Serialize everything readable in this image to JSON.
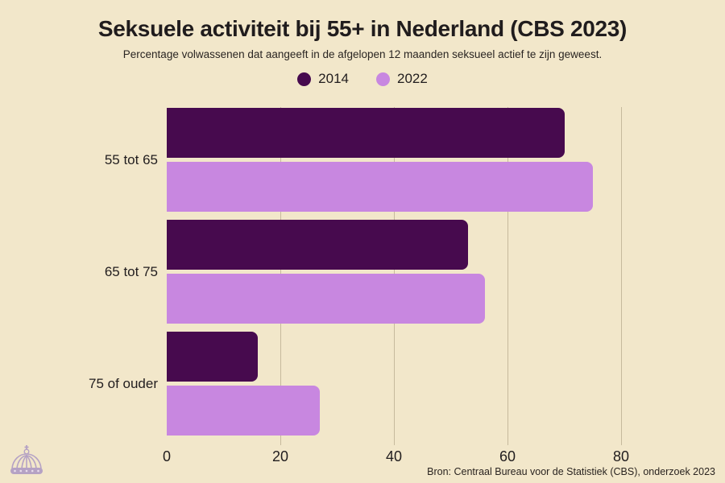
{
  "header": {
    "title": "Seksuele activiteit bij 55+ in Nederland (CBS 2023)",
    "subtitle": "Percentage volwassenen dat aangeeft in de afgelopen 12 maanden seksueel actief te zijn geweest."
  },
  "chart_data": {
    "type": "bar",
    "orientation": "horizontal",
    "title": "Seksuele activiteit bij 55+ in Nederland (CBS 2023)",
    "subtitle": "Percentage volwassenen dat aangeeft in de afgelopen 12 maanden seksueel actief te zijn geweest.",
    "categories": [
      "55 tot 65",
      "65 tot 75",
      "75 of ouder"
    ],
    "series": [
      {
        "name": "2014",
        "color": "#470a4e",
        "values": [
          70,
          53,
          16
        ]
      },
      {
        "name": "2022",
        "color": "#c887e0",
        "values": [
          75,
          56,
          27
        ]
      }
    ],
    "xlim": [
      0,
      80
    ],
    "xticks": [
      0,
      20,
      40,
      60,
      80
    ],
    "grid": "vertical",
    "legend_position": "top-center"
  },
  "footer": {
    "source": "Bron: Centraal Bureau voor de Statistiek (CBS), onderzoek 2023"
  },
  "branding": {
    "icon": "crown-icon"
  },
  "colors": {
    "background": "#f2e7ca",
    "series_2014": "#470a4e",
    "series_2022": "#c887e0",
    "gridline": "#c6ba9d",
    "text": "#211d1e",
    "crown": "#ab96c4"
  }
}
